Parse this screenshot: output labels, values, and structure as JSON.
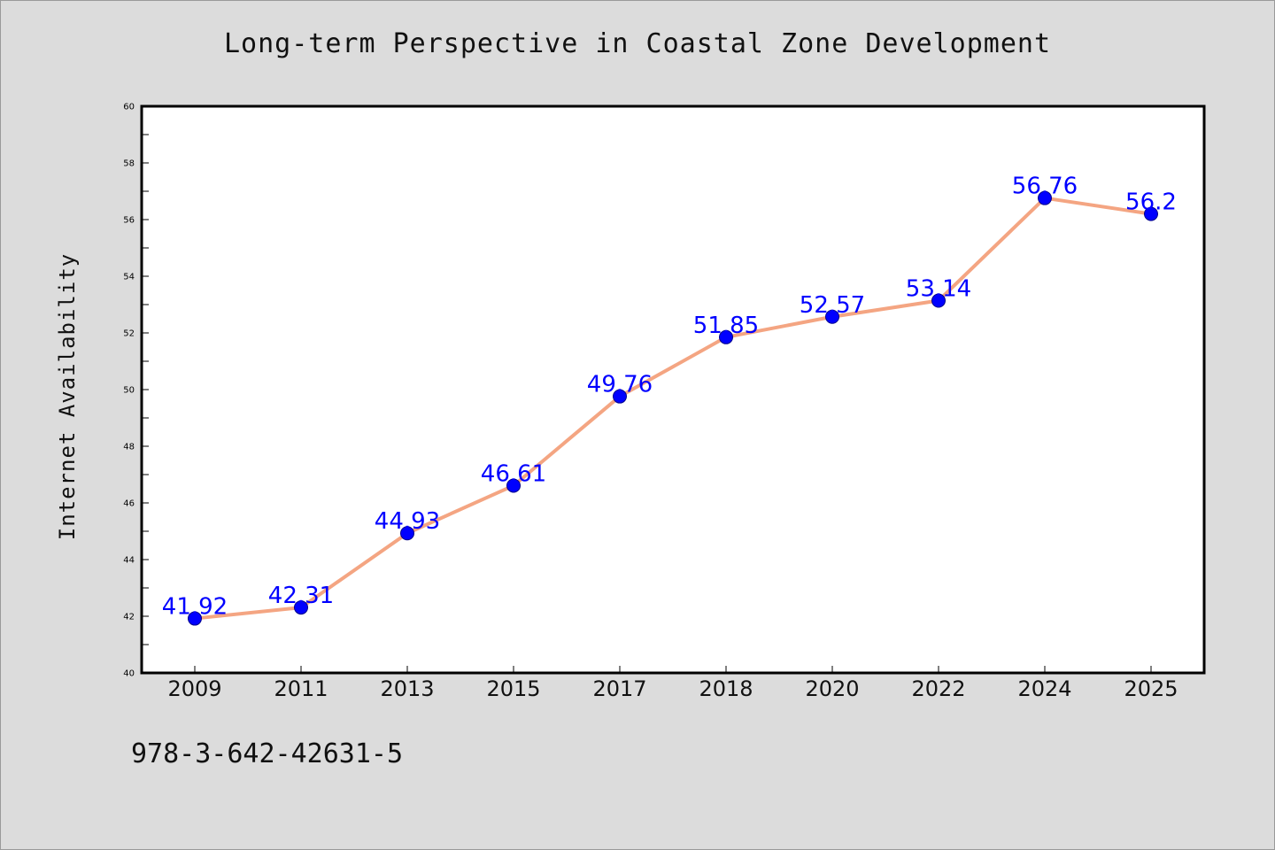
{
  "chart_data": {
    "type": "line",
    "title": "Long-term Perspective in Coastal Zone Development",
    "xlabel": "",
    "ylabel": "Internet Availability",
    "categories": [
      "2009",
      "2011",
      "2013",
      "2015",
      "2017",
      "2018",
      "2020",
      "2022",
      "2024",
      "2025"
    ],
    "series": [
      {
        "values": [
          41.92,
          42.31,
          44.93,
          46.61,
          49.76,
          51.85,
          52.57,
          53.14,
          56.76,
          56.2
        ],
        "data_labels": [
          "41.92",
          "42.31",
          "44.93",
          "46.61",
          "49.76",
          "51.85",
          "52.57",
          "53.14",
          "56.76",
          "56.2"
        ]
      }
    ],
    "ylim": [
      40,
      60
    ],
    "yticks": [
      "40",
      "42",
      "44",
      "46",
      "48",
      "50",
      "52",
      "54",
      "56",
      "58",
      "60"
    ],
    "grid": false,
    "colors": {
      "line": "#f4a582",
      "marker": "#0000ff",
      "data_label": "#0000ff",
      "plot_bg": "#ffffff",
      "page_bg": "#dcdcdc"
    }
  },
  "footer": {
    "isbn": "978-3-642-42631-5"
  }
}
